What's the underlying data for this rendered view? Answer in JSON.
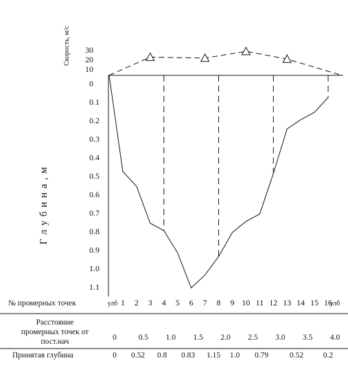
{
  "labels": {
    "speed_axis": "Скорость, м/с",
    "depth_axis": "Г л у б и н а , м",
    "row_points": "№ промерных точек",
    "row_distance_line1": "Расстояние",
    "row_distance_line2": "промерных точек от",
    "row_distance_line3": "пост.нач",
    "row_depth": "Принятая глубина"
  },
  "speed_ticks": [
    "30",
    "20",
    "10"
  ],
  "depth_ticks": [
    "0",
    "0.1",
    "0.2",
    "0.3",
    "0.4",
    "0.5",
    "0.6",
    "0.7",
    "0.8",
    "0.9",
    "1.0",
    "1.1"
  ],
  "points": [
    "улб",
    "1",
    "2",
    "3",
    "4",
    "5",
    "6",
    "7",
    "8",
    "9",
    "10",
    "11",
    "12",
    "13",
    "14",
    "15",
    "16",
    "улб"
  ],
  "distances": [
    "0",
    "0.5",
    "1.0",
    "1.5",
    "2.0",
    "2.5",
    "3.0",
    "3.5",
    "4.0"
  ],
  "depths": [
    "0",
    "0.52",
    "0.8",
    "0.83",
    "1.15",
    "1.0",
    "0.79",
    "0.52",
    "0.2"
  ],
  "chart_data": {
    "type": "line",
    "profile": {
      "name": "bed",
      "depth": [
        0,
        0.52,
        0.6,
        0.8,
        0.84,
        0.96,
        1.15,
        1.08,
        0.98,
        0.85,
        0.79,
        0.75,
        0.53,
        0.29,
        0.24,
        0.2,
        0.12
      ]
    },
    "verticals_point_no": [
      4,
      8,
      12,
      16
    ],
    "speed_profile": {
      "x_point_no": [
        0,
        3,
        7,
        10,
        13,
        17
      ],
      "speed": [
        0,
        19,
        18,
        25,
        17,
        0
      ]
    },
    "speed_markers_point_no": [
      3,
      7,
      10,
      13
    ],
    "ylim_depth": [
      0,
      1.15
    ]
  }
}
